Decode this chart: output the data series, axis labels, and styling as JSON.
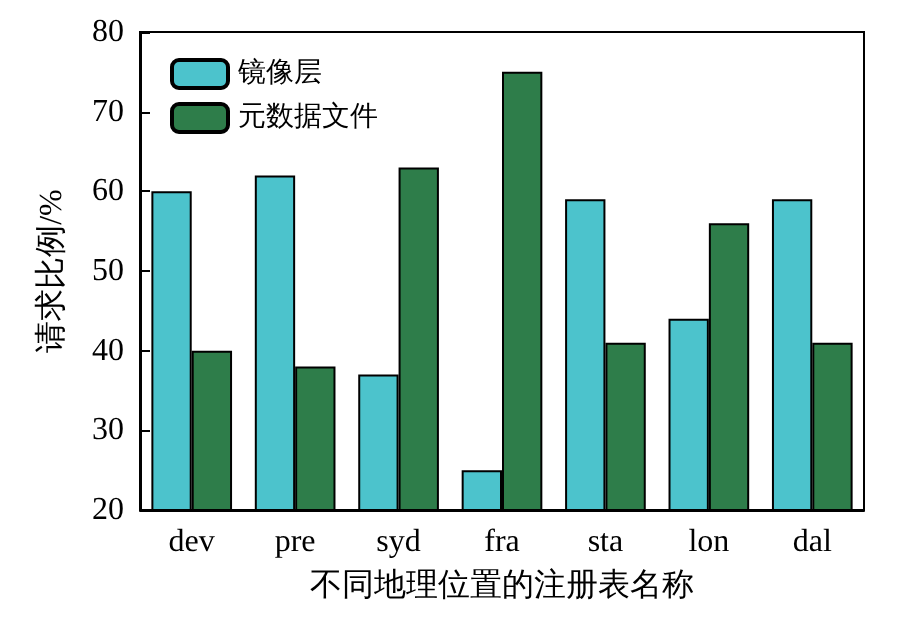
{
  "chart_data": {
    "type": "bar",
    "xlabel": "不同地理位置的注册表名称",
    "ylabel": "请求比例/%",
    "categories": [
      "dev",
      "pre",
      "syd",
      "fra",
      "sta",
      "lon",
      "dal"
    ],
    "series": [
      {
        "name": "镜像层",
        "color": "#4cc3cc",
        "values": [
          60,
          62,
          37,
          25,
          59,
          44,
          59
        ]
      },
      {
        "name": "元数据文件",
        "color": "#2e7d4a",
        "values": [
          40,
          38,
          63,
          75,
          41,
          56,
          41
        ]
      }
    ],
    "ylim": [
      20,
      80
    ],
    "yticks": [
      20,
      30,
      40,
      50,
      60,
      70,
      80
    ],
    "grid": false,
    "legend": "top left"
  }
}
